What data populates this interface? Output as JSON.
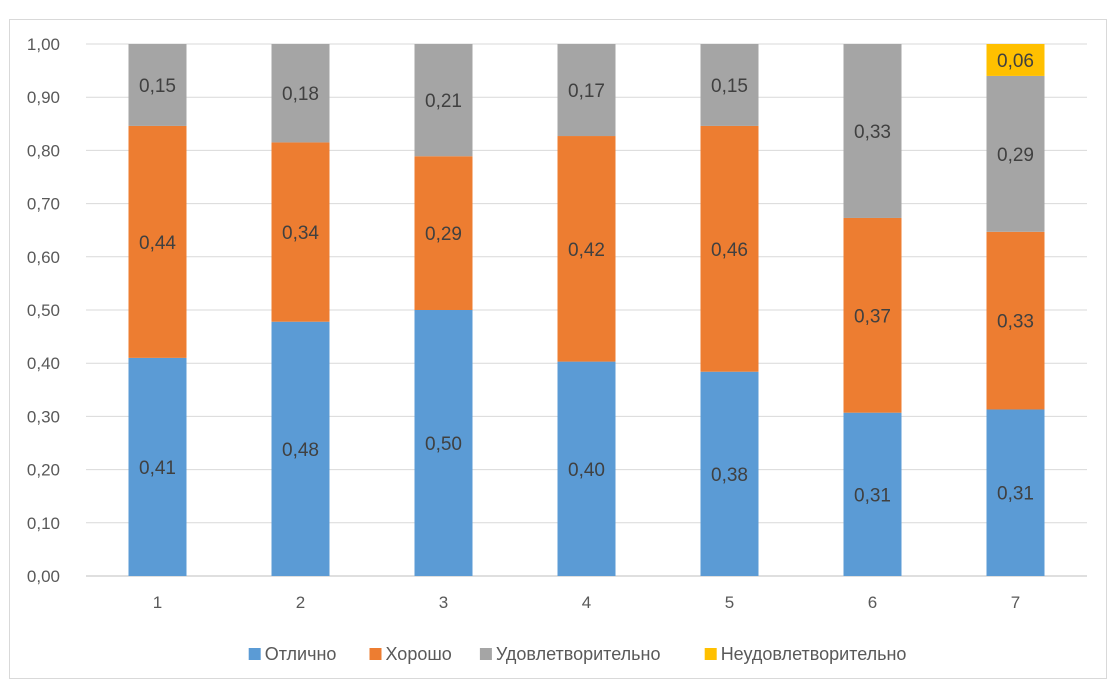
{
  "chart_data": {
    "type": "bar",
    "stacked": true,
    "title": "",
    "xlabel": "",
    "ylabel": "",
    "ylim": [
      0,
      1
    ],
    "y_ticks": [
      "0,00",
      "0,10",
      "0,20",
      "0,30",
      "0,40",
      "0,50",
      "0,60",
      "0,70",
      "0,80",
      "0,90",
      "1,00"
    ],
    "grid": true,
    "legend_position": "bottom",
    "categories": [
      "1",
      "2",
      "3",
      "4",
      "5",
      "6",
      "7"
    ],
    "series": [
      {
        "name": "Отлично",
        "color": "#5b9bd5",
        "values": [
          0.41,
          0.478,
          0.5,
          0.403,
          0.384,
          0.307,
          0.313
        ],
        "labels": [
          "0,41",
          "0,48",
          "0,50",
          "0,40",
          "0,38",
          "0,31",
          "0,31"
        ]
      },
      {
        "name": "Хорошо",
        "color": "#ed7d31",
        "values": [
          0.436,
          0.337,
          0.289,
          0.424,
          0.462,
          0.366,
          0.334
        ],
        "labels": [
          "0,44",
          "0,34",
          "0,29",
          "0,42",
          "0,46",
          "0,37",
          "0,33"
        ]
      },
      {
        "name": "Удовлетворительно",
        "color": "#a5a5a5",
        "values": [
          0.154,
          0.185,
          0.211,
          0.173,
          0.154,
          0.327,
          0.293
        ],
        "labels": [
          "0,15",
          "0,18",
          "0,21",
          "0,17",
          "0,15",
          "0,33",
          "0,29"
        ]
      },
      {
        "name": "Неудовлетворительно",
        "color": "#ffc000",
        "values": [
          0,
          0,
          0,
          0,
          0,
          0,
          0.06
        ],
        "labels": [
          "",
          "",
          "",
          "",
          "",
          "",
          "0,06"
        ]
      }
    ]
  }
}
